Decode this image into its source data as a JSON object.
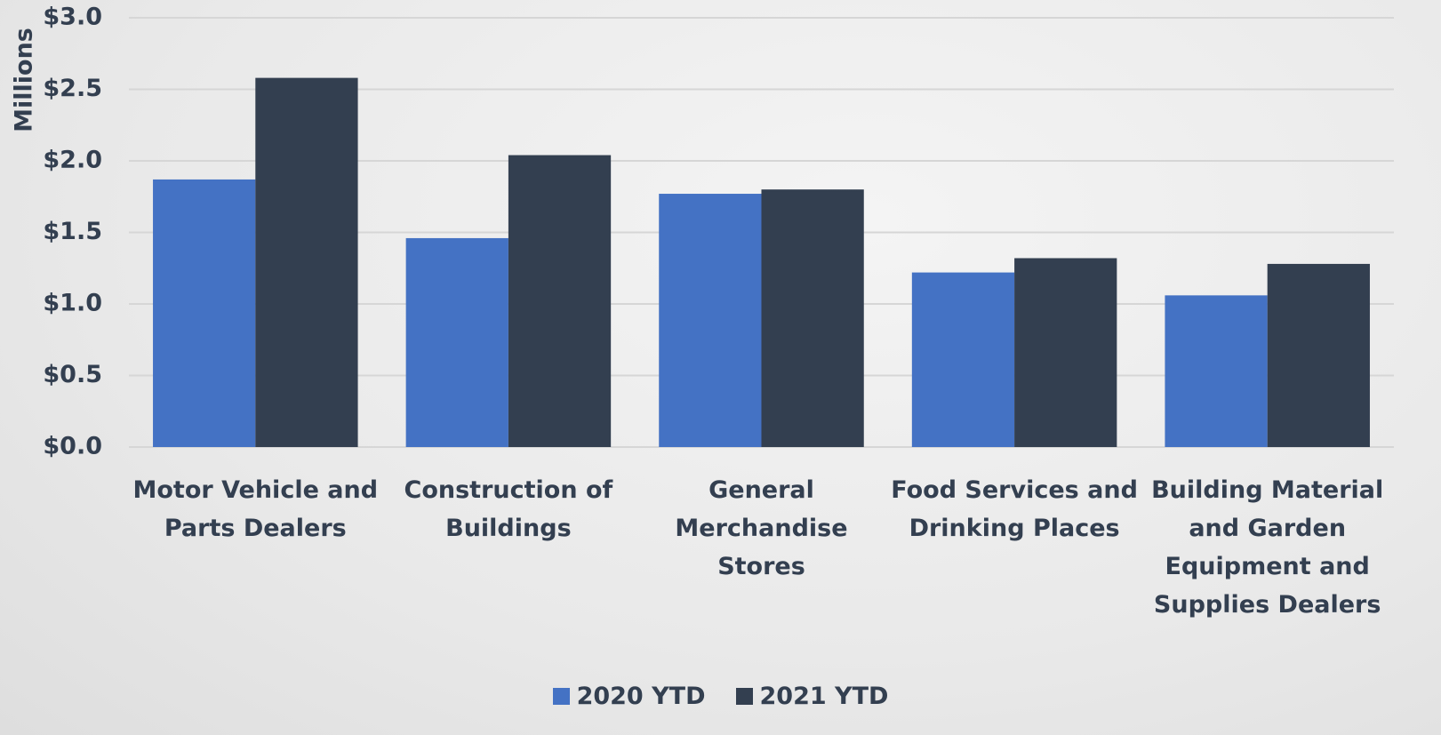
{
  "chart_data": {
    "type": "bar",
    "y_label": "Millions",
    "categories": [
      "Motor Vehicle and Parts Dealers",
      "Construction of Buildings",
      "General Merchandise Stores",
      "Food Services and Drinking Places",
      "Building Material and Garden Equipment and Supplies Dealers"
    ],
    "series": [
      {
        "name": "2020 YTD",
        "color": "#4472c4",
        "values": [
          1.87,
          1.46,
          1.77,
          1.22,
          1.06
        ]
      },
      {
        "name": "2021 YTD",
        "color": "#333f50",
        "values": [
          2.58,
          2.04,
          1.8,
          1.32,
          1.28
        ]
      }
    ],
    "ylim": [
      0,
      3
    ],
    "yticks": [
      {
        "value": 0,
        "label": "$0.0"
      },
      {
        "value": 0.5,
        "label": "$0.5"
      },
      {
        "value": 1,
        "label": "$1.0"
      },
      {
        "value": 1.5,
        "label": "$1.5"
      },
      {
        "value": 2,
        "label": "$2.0"
      },
      {
        "value": 2.5,
        "label": "$2.5"
      },
      {
        "value": 3,
        "label": "$3.0"
      }
    ],
    "grid": true,
    "legend": "bottom"
  }
}
